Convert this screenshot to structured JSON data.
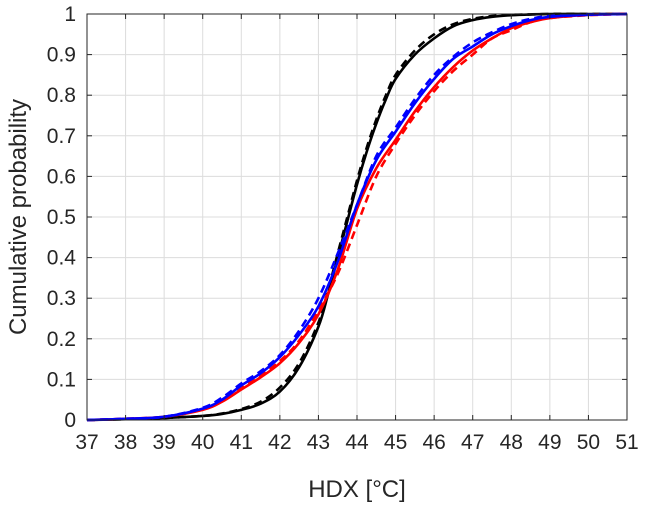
{
  "chart_data": {
    "type": "line",
    "title": "",
    "xlabel": "HDX [°C]",
    "ylabel": "Cumulative probability",
    "xlim": [
      37,
      51
    ],
    "ylim": [
      0,
      1
    ],
    "xticks": [
      "37",
      "38",
      "39",
      "40",
      "41",
      "42",
      "43",
      "44",
      "45",
      "46",
      "47",
      "48",
      "49",
      "50",
      "51"
    ],
    "yticks": [
      "0",
      "0.1",
      "0.2",
      "0.3",
      "0.4",
      "0.5",
      "0.6",
      "0.7",
      "0.8",
      "0.9",
      "1"
    ],
    "grid": true,
    "legend": "none",
    "series": [
      {
        "color": "#000000",
        "line_style": "solid",
        "x": [
          37,
          38,
          39,
          40,
          40.5,
          41,
          41.5,
          42,
          42.5,
          43,
          43.25,
          43.5,
          43.75,
          44,
          44.25,
          44.5,
          44.75,
          45,
          45.5,
          46,
          46.5,
          47,
          47.5,
          48,
          48.5,
          49,
          50,
          51
        ],
        "y": [
          0,
          0.002,
          0.005,
          0.01,
          0.015,
          0.025,
          0.04,
          0.07,
          0.13,
          0.23,
          0.31,
          0.4,
          0.49,
          0.58,
          0.66,
          0.73,
          0.79,
          0.84,
          0.9,
          0.94,
          0.97,
          0.985,
          0.993,
          0.997,
          0.999,
          1,
          1,
          1
        ]
      },
      {
        "color": "#000000",
        "line_style": "dashed",
        "x": [
          37,
          38,
          39,
          40,
          40.5,
          41,
          41.5,
          42,
          42.5,
          43,
          43.25,
          43.5,
          43.75,
          44,
          44.25,
          44.5,
          44.75,
          45,
          45.5,
          46,
          46.5,
          47,
          47.5,
          48,
          48.5,
          49,
          50,
          51
        ],
        "y": [
          0,
          0.002,
          0.005,
          0.01,
          0.016,
          0.027,
          0.045,
          0.08,
          0.14,
          0.24,
          0.32,
          0.41,
          0.5,
          0.59,
          0.67,
          0.74,
          0.8,
          0.85,
          0.91,
          0.95,
          0.975,
          0.988,
          0.995,
          0.998,
          0.999,
          1,
          1,
          1
        ]
      },
      {
        "color": "#ff0000",
        "line_style": "solid",
        "x": [
          37,
          38,
          39,
          40,
          40.5,
          41,
          41.5,
          42,
          42.5,
          43,
          43.5,
          44,
          44.5,
          45,
          45.5,
          46,
          46.5,
          47,
          47.5,
          48,
          48.5,
          49,
          50,
          51
        ],
        "y": [
          0,
          0.003,
          0.008,
          0.025,
          0.045,
          0.075,
          0.105,
          0.14,
          0.19,
          0.26,
          0.37,
          0.52,
          0.62,
          0.69,
          0.76,
          0.82,
          0.87,
          0.91,
          0.94,
          0.965,
          0.98,
          0.99,
          0.998,
          1
        ]
      },
      {
        "color": "#ff0000",
        "line_style": "dashed",
        "x": [
          37,
          38,
          39,
          40,
          40.5,
          41,
          41.5,
          42,
          42.5,
          43,
          43.5,
          44,
          44.5,
          45,
          45.5,
          46,
          46.5,
          47,
          47.5,
          48,
          48.5,
          49,
          50,
          51
        ],
        "y": [
          0,
          0.003,
          0.008,
          0.026,
          0.047,
          0.08,
          0.11,
          0.145,
          0.195,
          0.27,
          0.36,
          0.48,
          0.6,
          0.68,
          0.75,
          0.81,
          0.86,
          0.9,
          0.94,
          0.96,
          0.98,
          0.99,
          0.997,
          1
        ]
      },
      {
        "color": "#0000ff",
        "line_style": "solid",
        "x": [
          37,
          38,
          39,
          40,
          40.5,
          41,
          41.5,
          42,
          42.5,
          43,
          43.5,
          44,
          44.5,
          45,
          45.5,
          46,
          46.5,
          47,
          47.5,
          48,
          48.5,
          49,
          50,
          51
        ],
        "y": [
          0,
          0.003,
          0.008,
          0.028,
          0.05,
          0.085,
          0.115,
          0.155,
          0.21,
          0.28,
          0.39,
          0.53,
          0.64,
          0.71,
          0.78,
          0.84,
          0.89,
          0.92,
          0.95,
          0.97,
          0.985,
          0.993,
          0.998,
          1
        ]
      },
      {
        "color": "#0000ff",
        "line_style": "dashed",
        "x": [
          37,
          38,
          39,
          40,
          40.5,
          41,
          41.5,
          42,
          42.5,
          43,
          43.5,
          44,
          44.5,
          45,
          45.5,
          46,
          46.5,
          47,
          47.5,
          48,
          48.5,
          49,
          50,
          51
        ],
        "y": [
          0,
          0.003,
          0.008,
          0.03,
          0.055,
          0.09,
          0.12,
          0.16,
          0.22,
          0.3,
          0.41,
          0.53,
          0.65,
          0.72,
          0.79,
          0.85,
          0.895,
          0.93,
          0.955,
          0.975,
          0.988,
          0.995,
          0.999,
          1
        ]
      }
    ]
  }
}
